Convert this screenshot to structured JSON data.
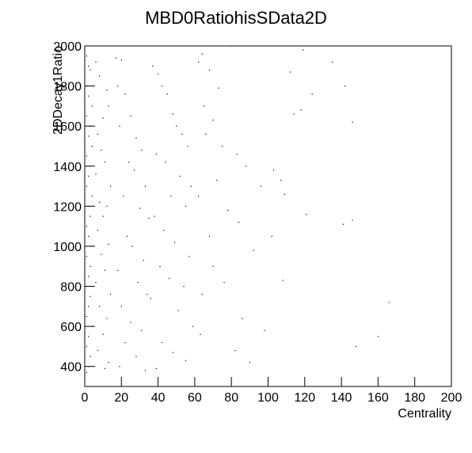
{
  "chart_data": {
    "type": "scatter",
    "title": "MBD0RatiohisSData2D",
    "x_label": "Centrality",
    "y_label": "2DDecay1Ratio",
    "xlim": [
      0,
      200
    ],
    "xticks": [
      0,
      20,
      40,
      60,
      80,
      100,
      120,
      140,
      160,
      180,
      200
    ],
    "ylim": [
      300,
      2000
    ],
    "yticks": [
      400,
      600,
      800,
      1000,
      1200,
      1400,
      1600,
      1800,
      2000
    ],
    "color": "#000000",
    "x": [
      1,
      2,
      3,
      1,
      2,
      4,
      1,
      3,
      2,
      4,
      1,
      3,
      2,
      1,
      4,
      2,
      3,
      1,
      2,
      4,
      1,
      3,
      2,
      1,
      3,
      2,
      1,
      4,
      2,
      1,
      3,
      2,
      1,
      6,
      8,
      12,
      13,
      10,
      7,
      9,
      11,
      6,
      14,
      8,
      12,
      10,
      7,
      13,
      9,
      11,
      6,
      14,
      8,
      12,
      10,
      7,
      13,
      11,
      17,
      20,
      18,
      22,
      25,
      19,
      28,
      31,
      24,
      27,
      33,
      21,
      30,
      35,
      23,
      26,
      32,
      18,
      29,
      34,
      20,
      25,
      31,
      22,
      28,
      19,
      33,
      37,
      40,
      42,
      45,
      48,
      50,
      53,
      56,
      39,
      44,
      52,
      58,
      47,
      55,
      38,
      43,
      49,
      57,
      41,
      46,
      54,
      36,
      51,
      59,
      42,
      48,
      55,
      39,
      62,
      64,
      68,
      73,
      80,
      65,
      70,
      66,
      75,
      83,
      88,
      72,
      96,
      62,
      78,
      84,
      68,
      92,
      70,
      76,
      64,
      86,
      63,
      82,
      90,
      98,
      103,
      107,
      112,
      119,
      124,
      118,
      135,
      142,
      146,
      109,
      121,
      141,
      146,
      108,
      166,
      160,
      148,
      102,
      114
    ],
    "values": [
      1950,
      1900,
      1880,
      1800,
      1750,
      1700,
      1650,
      1600,
      1550,
      1500,
      1450,
      1400,
      1350,
      1300,
      1250,
      1200,
      1150,
      1100,
      1050,
      1000,
      950,
      900,
      850,
      800,
      750,
      700,
      650,
      600,
      550,
      500,
      450,
      400,
      370,
      1920,
      1850,
      1780,
      1700,
      1640,
      1560,
      1480,
      1420,
      1360,
      1300,
      1220,
      1200,
      1150,
      1080,
      1010,
      960,
      880,
      820,
      760,
      700,
      640,
      560,
      480,
      420,
      390,
      1940,
      1930,
      1800,
      1760,
      1650,
      1600,
      1540,
      1480,
      1420,
      1380,
      1300,
      1250,
      1190,
      1140,
      1050,
      1000,
      930,
      880,
      820,
      760,
      700,
      620,
      580,
      520,
      450,
      400,
      380,
      1900,
      1860,
      1800,
      1760,
      1660,
      1600,
      1560,
      1500,
      1460,
      1420,
      1350,
      1300,
      1250,
      1200,
      1150,
      1080,
      1020,
      950,
      900,
      840,
      800,
      740,
      680,
      600,
      520,
      470,
      430,
      390,
      1920,
      1960,
      1880,
      1790,
      2000,
      1700,
      1630,
      1560,
      1500,
      1460,
      1400,
      1330,
      1300,
      1250,
      1180,
      1120,
      1050,
      980,
      900,
      820,
      760,
      640,
      560,
      480,
      420,
      580,
      1380,
      1330,
      1870,
      1980,
      1760,
      1680,
      1920,
      1800,
      1620,
      1260,
      1160,
      1110,
      1130,
      830,
      720,
      550,
      500,
      1050,
      1660
    ]
  }
}
